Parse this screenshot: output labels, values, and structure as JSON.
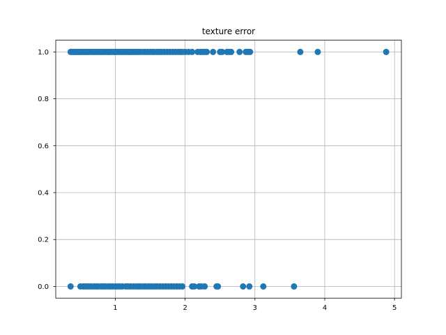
{
  "chart_data": {
    "type": "scatter",
    "title": "texture error",
    "xlabel": "",
    "ylabel": "",
    "xlim": [
      0.147,
      5.098
    ],
    "ylim": [
      -0.05,
      1.05
    ],
    "xticks": [
      1,
      2,
      3,
      4,
      5
    ],
    "xtick_labels": [
      "1",
      "2",
      "3",
      "4",
      "5"
    ],
    "yticks": [
      0.0,
      0.2,
      0.4,
      0.6,
      0.8,
      1.0
    ],
    "ytick_labels": [
      "0.0",
      "0.2",
      "0.4",
      "0.6",
      "0.8",
      "1.0"
    ],
    "grid": true,
    "marker_color": "#1f77b4",
    "series": [
      {
        "x": [
          0.36,
          0.38,
          0.4,
          0.42,
          0.44,
          0.46,
          0.48,
          0.5,
          0.52,
          0.55,
          0.58,
          0.6,
          0.62,
          0.65,
          0.68,
          0.7,
          0.72,
          0.75,
          0.78,
          0.8,
          0.82,
          0.85,
          0.88,
          0.9,
          0.92,
          0.95,
          0.98,
          1.0,
          1.02,
          1.05,
          1.08,
          1.1,
          1.12,
          1.15,
          1.18,
          1.2,
          1.22,
          1.25,
          1.28,
          1.3,
          1.33,
          1.36,
          1.4,
          1.43,
          1.46,
          1.5,
          1.53,
          1.56,
          1.6,
          1.63,
          1.66,
          1.7,
          1.74,
          1.78,
          1.82,
          1.86,
          1.9,
          1.93,
          1.96,
          2.0,
          2.05,
          2.1,
          2.18,
          2.22,
          2.25,
          2.28,
          2.31,
          2.4,
          2.5,
          2.53,
          2.6,
          2.63,
          2.66,
          2.78,
          2.87,
          2.9,
          2.93,
          3.65,
          3.9,
          4.88
        ],
        "y": [
          1,
          1,
          1,
          1,
          1,
          1,
          1,
          1,
          1,
          1,
          1,
          1,
          1,
          1,
          1,
          1,
          1,
          1,
          1,
          1,
          1,
          1,
          1,
          1,
          1,
          1,
          1,
          1,
          1,
          1,
          1,
          1,
          1,
          1,
          1,
          1,
          1,
          1,
          1,
          1,
          1,
          1,
          1,
          1,
          1,
          1,
          1,
          1,
          1,
          1,
          1,
          1,
          1,
          1,
          1,
          1,
          1,
          1,
          1,
          1,
          1,
          1,
          1,
          1,
          1,
          1,
          1,
          1,
          1,
          1,
          1,
          1,
          1,
          1,
          1,
          1,
          1,
          1,
          1,
          1
        ]
      },
      {
        "x": [
          0.36,
          0.5,
          0.54,
          0.57,
          0.6,
          0.63,
          0.66,
          0.7,
          0.73,
          0.76,
          0.8,
          0.83,
          0.86,
          0.9,
          0.93,
          0.96,
          1.0,
          1.03,
          1.06,
          1.1,
          1.15,
          1.18,
          1.22,
          1.26,
          1.3,
          1.33,
          1.36,
          1.4,
          1.43,
          1.47,
          1.5,
          1.53,
          1.57,
          1.6,
          1.64,
          1.68,
          1.72,
          1.76,
          1.8,
          1.84,
          1.88,
          1.92,
          1.96,
          2.1,
          2.13,
          2.2,
          2.23,
          2.28,
          2.45,
          2.47,
          2.83,
          2.92,
          3.12,
          3.56
        ],
        "y": [
          0,
          0,
          0,
          0,
          0,
          0,
          0,
          0,
          0,
          0,
          0,
          0,
          0,
          0,
          0,
          0,
          0,
          0,
          0,
          0,
          0,
          0,
          0,
          0,
          0,
          0,
          0,
          0,
          0,
          0,
          0,
          0,
          0,
          0,
          0,
          0,
          0,
          0,
          0,
          0,
          0,
          0,
          0,
          0,
          0,
          0,
          0,
          0,
          0,
          0,
          0,
          0,
          0,
          0
        ]
      }
    ]
  }
}
